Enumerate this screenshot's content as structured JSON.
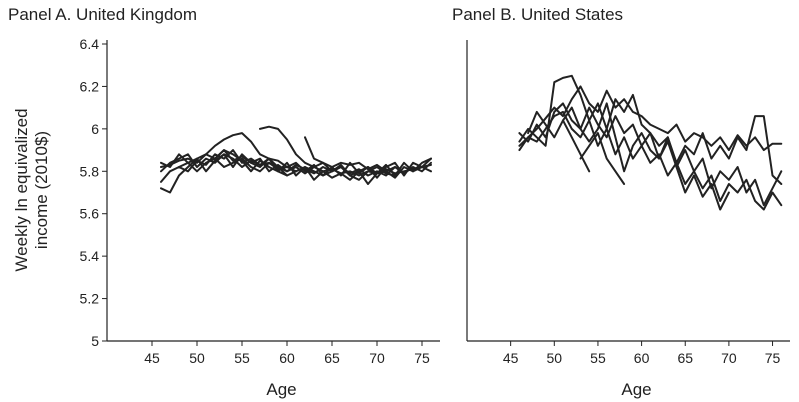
{
  "ylabel_line1": "Weekly ln equivalized",
  "ylabel_line2": "income (2010$)",
  "chart_data": [
    {
      "type": "line",
      "title": "Panel A. United Kingdom",
      "xlabel": "Age",
      "ylabel": "Weekly ln equivalized income (2010$)",
      "xlim": [
        40,
        77
      ],
      "ylim": [
        5,
        6.4
      ],
      "xticks": [
        45,
        50,
        55,
        60,
        65,
        70,
        75
      ],
      "yticks": [
        5,
        5.2,
        5.4,
        5.6,
        5.8,
        6,
        6.2,
        6.4
      ],
      "yticks_labels": [
        "5",
        "5.2",
        "5.4",
        "5.6",
        "5.8",
        "6",
        "6.2",
        "6.4"
      ],
      "series": [
        {
          "x": [
            46,
            47,
            48,
            49,
            50,
            51,
            52,
            53,
            54,
            55,
            56,
            57,
            58,
            59,
            60,
            61,
            62,
            63,
            64,
            65,
            66,
            67,
            68,
            69,
            70,
            71,
            72,
            73,
            74,
            75,
            76
          ],
          "y": [
            5.82,
            5.83,
            5.85,
            5.86,
            5.84,
            5.88,
            5.86,
            5.9,
            5.85,
            5.87,
            5.84,
            5.86,
            5.8,
            5.83,
            5.8,
            5.82,
            5.79,
            5.82,
            5.8,
            5.81,
            5.79,
            5.8,
            5.78,
            5.8,
            5.79,
            5.81,
            5.79,
            5.8,
            5.81,
            5.82,
            5.83
          ]
        },
        {
          "x": [
            46,
            47,
            48,
            49,
            50,
            51,
            52,
            53,
            54,
            55,
            56,
            57,
            58,
            59,
            60,
            61,
            62,
            63,
            64,
            65,
            66,
            67,
            68,
            69,
            70,
            71,
            72,
            73,
            74,
            75,
            76
          ],
          "y": [
            5.72,
            5.7,
            5.78,
            5.82,
            5.86,
            5.8,
            5.85,
            5.88,
            5.82,
            5.88,
            5.84,
            5.82,
            5.86,
            5.8,
            5.84,
            5.78,
            5.82,
            5.76,
            5.8,
            5.77,
            5.79,
            5.76,
            5.8,
            5.74,
            5.79,
            5.8,
            5.77,
            5.82,
            5.8,
            5.84,
            5.86
          ]
        },
        {
          "x": [
            46,
            47,
            48,
            49,
            50,
            51,
            52,
            53,
            54,
            55,
            56,
            57,
            58,
            59,
            60,
            61,
            62,
            63,
            64,
            65,
            66,
            67,
            68,
            69,
            70,
            71,
            72,
            73,
            74,
            75,
            76
          ],
          "y": [
            5.75,
            5.8,
            5.82,
            5.8,
            5.85,
            5.83,
            5.88,
            5.86,
            5.9,
            5.84,
            5.86,
            5.83,
            5.84,
            5.81,
            5.82,
            5.84,
            5.8,
            5.83,
            5.78,
            5.8,
            5.82,
            5.79,
            5.81,
            5.78,
            5.8,
            5.78,
            5.82,
            5.79,
            5.82,
            5.8,
            5.84
          ]
        },
        {
          "x": [
            46,
            47,
            48,
            49,
            50,
            51,
            52,
            53,
            54,
            55,
            56,
            57,
            58,
            59,
            60,
            61,
            62,
            63,
            64,
            65,
            66,
            67,
            68,
            69,
            70,
            71,
            72,
            73,
            74,
            75,
            76
          ],
          "y": [
            5.8,
            5.84,
            5.86,
            5.88,
            5.82,
            5.86,
            5.84,
            5.88,
            5.86,
            5.82,
            5.85,
            5.83,
            5.86,
            5.82,
            5.8,
            5.83,
            5.81,
            5.79,
            5.82,
            5.8,
            5.83,
            5.78,
            5.8,
            5.82,
            5.79,
            5.83,
            5.78,
            5.84,
            5.8,
            5.82,
            5.8
          ]
        },
        {
          "x": [
            46,
            47,
            48,
            49,
            50,
            51,
            52,
            53,
            54,
            55,
            56,
            57,
            58,
            59,
            60,
            61,
            62,
            63,
            64,
            65,
            66,
            67,
            68,
            69,
            70,
            71,
            72,
            73,
            74,
            75,
            76
          ],
          "y": [
            5.84,
            5.82,
            5.88,
            5.84,
            5.8,
            5.84,
            5.86,
            5.82,
            5.84,
            5.86,
            5.82,
            5.8,
            5.84,
            5.82,
            5.78,
            5.8,
            5.82,
            5.8,
            5.78,
            5.82,
            5.78,
            5.84,
            5.79,
            5.82,
            5.77,
            5.82,
            5.84,
            5.78,
            5.84,
            5.82,
            5.86
          ]
        },
        {
          "x": [
            48,
            49,
            50,
            51,
            52,
            53,
            54,
            55,
            56,
            57,
            58,
            59,
            60,
            61
          ],
          "y": [
            5.82,
            5.84,
            5.86,
            5.88,
            5.92,
            5.95,
            5.97,
            5.98,
            5.94,
            5.88,
            5.86,
            5.85,
            5.82,
            5.8
          ]
        },
        {
          "x": [
            52,
            53,
            54,
            55,
            56,
            57,
            58,
            59,
            60
          ],
          "y": [
            5.86,
            5.9,
            5.88,
            5.85,
            5.8,
            5.85,
            5.82,
            5.8,
            5.78
          ]
        },
        {
          "x": [
            57,
            58,
            59,
            60,
            61,
            62,
            63,
            64,
            65,
            66,
            67,
            68,
            69,
            70,
            71,
            72
          ],
          "y": [
            6.0,
            6.01,
            6.0,
            5.95,
            5.88,
            5.84,
            5.82,
            5.84,
            5.82,
            5.84,
            5.83,
            5.84,
            5.81,
            5.83,
            5.8,
            5.82
          ]
        },
        {
          "x": [
            62,
            63,
            64,
            65,
            66,
            67,
            68,
            69,
            70,
            71,
            72
          ],
          "y": [
            5.96,
            5.86,
            5.84,
            5.8,
            5.82,
            5.78,
            5.76,
            5.8,
            5.82,
            5.79,
            5.78
          ]
        }
      ]
    },
    {
      "type": "line",
      "title": "Panel B. United States",
      "xlabel": "Age",
      "xlim": [
        40,
        77
      ],
      "ylim": [
        5,
        6.4
      ],
      "xticks": [
        45,
        50,
        55,
        60,
        65,
        70,
        75
      ],
      "series": [
        {
          "x": [
            46,
            47,
            48,
            49,
            50,
            51,
            52,
            53,
            54,
            55,
            56,
            57,
            58,
            59,
            60,
            61,
            62,
            63,
            64,
            65,
            66,
            67,
            68,
            69,
            70,
            71,
            72,
            73,
            74,
            75,
            76
          ],
          "y": [
            5.92,
            5.96,
            6.0,
            6.05,
            6.1,
            6.06,
            6.14,
            6.2,
            6.12,
            6.08,
            6.18,
            6.1,
            6.14,
            6.08,
            6.06,
            6.02,
            6.0,
            5.98,
            6.02,
            5.94,
            5.98,
            5.96,
            5.92,
            5.96,
            5.9,
            5.97,
            5.92,
            5.96,
            5.9,
            5.93,
            5.93
          ]
        },
        {
          "x": [
            46,
            47,
            48,
            49,
            50,
            51,
            52,
            53,
            54,
            55,
            56,
            57,
            58,
            59,
            60,
            61,
            62,
            63,
            64,
            65,
            66,
            67,
            68,
            69,
            70,
            71,
            72,
            73,
            74,
            75,
            76
          ],
          "y": [
            5.98,
            5.94,
            6.02,
            5.96,
            6.08,
            6.12,
            6.04,
            6.0,
            6.1,
            6.02,
            5.96,
            6.06,
            5.98,
            6.02,
            5.92,
            5.98,
            5.86,
            5.94,
            5.82,
            5.9,
            5.8,
            5.86,
            5.72,
            5.8,
            5.76,
            5.82,
            5.7,
            5.76,
            5.64,
            5.72,
            5.8
          ]
        },
        {
          "x": [
            46,
            47,
            48,
            49,
            50,
            51,
            52,
            53,
            54,
            55,
            56,
            57,
            58,
            59,
            60,
            61,
            62,
            63,
            64,
            65,
            66,
            67,
            68,
            69,
            70,
            71,
            72,
            73,
            74,
            75,
            76
          ],
          "y": [
            5.9,
            5.96,
            5.94,
            6.0,
            6.06,
            6.08,
            6.0,
            5.96,
            6.04,
            5.92,
            6.0,
            5.88,
            5.96,
            5.86,
            5.92,
            5.84,
            5.88,
            5.78,
            5.84,
            5.74,
            5.8,
            5.72,
            5.78,
            5.66,
            5.74,
            5.7,
            5.76,
            5.66,
            5.62,
            5.7,
            5.64
          ]
        },
        {
          "x": [
            46,
            47,
            48,
            49,
            50,
            51,
            52,
            53,
            54,
            55,
            56,
            57,
            58,
            59,
            60,
            61,
            62,
            63,
            64,
            65,
            66,
            67,
            68,
            69,
            70,
            71,
            72,
            73,
            74,
            75,
            76
          ],
          "y": [
            5.94,
            6.0,
            5.96,
            5.92,
            6.22,
            6.24,
            6.25,
            6.16,
            6.04,
            6.12,
            6.0,
            6.14,
            6.08,
            6.16,
            6.02,
            5.98,
            5.92,
            5.96,
            5.84,
            5.92,
            5.88,
            5.98,
            5.86,
            5.92,
            5.86,
            5.96,
            5.9,
            6.06,
            6.06,
            5.78,
            5.74
          ]
        },
        {
          "x": [
            47,
            48,
            49,
            50,
            51,
            52,
            53,
            54,
            55,
            56,
            57,
            58,
            59,
            60,
            61,
            62,
            63,
            64,
            65,
            66,
            67,
            68,
            69,
            70
          ],
          "y": [
            5.98,
            6.08,
            6.02,
            5.96,
            6.04,
            6.1,
            6.0,
            5.94,
            6.0,
            6.12,
            5.96,
            5.8,
            5.92,
            5.98,
            5.9,
            5.86,
            5.96,
            5.82,
            5.7,
            5.78,
            5.68,
            5.74,
            5.62,
            5.7
          ]
        },
        {
          "x": [
            51,
            52,
            53,
            54
          ],
          "y": [
            6.04,
            5.96,
            5.88,
            5.8
          ]
        },
        {
          "x": [
            53,
            54,
            55,
            56,
            57,
            58
          ],
          "y": [
            5.86,
            5.92,
            5.98,
            5.86,
            5.8,
            5.74
          ]
        }
      ]
    }
  ]
}
